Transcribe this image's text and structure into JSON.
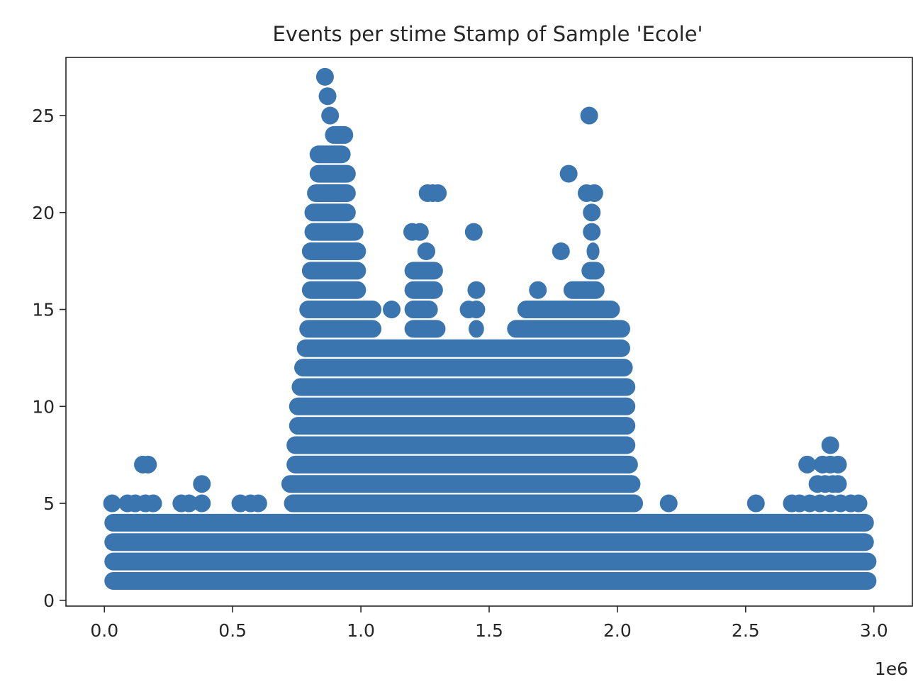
{
  "chart_data": {
    "type": "scatter",
    "title": "Events per stime Stamp of Sample 'Ecole'",
    "xlabel": "",
    "ylabel": "",
    "x_offset_label": "1e6",
    "xlim": [
      -0.15,
      3.15
    ],
    "ylim": [
      -0.3,
      28
    ],
    "x_ticks": [
      0.0,
      0.5,
      1.0,
      1.5,
      2.0,
      2.5,
      3.0
    ],
    "x_tick_labels": [
      "0.0",
      "0.5",
      "1.0",
      "1.5",
      "2.0",
      "2.5",
      "3.0"
    ],
    "y_ticks": [
      0,
      5,
      10,
      15,
      20,
      25
    ],
    "y_tick_labels": [
      "0",
      "5",
      "10",
      "15",
      "20",
      "25"
    ],
    "grid": false,
    "marker_color": "#3a75af",
    "series": [
      {
        "x_unit_scale": 1000000.0,
        "dense_rows": [
          {
            "y": 1,
            "x_start": 0.0,
            "x_end": 3.01
          },
          {
            "y": 2,
            "x_start": 0.0,
            "x_end": 3.01
          },
          {
            "y": 3,
            "x_start": 0.0,
            "x_end": 3.0
          },
          {
            "y": 4,
            "x_start": 0.0,
            "x_end": 3.0
          },
          {
            "y": 5,
            "x_start": 0.7,
            "x_end": 2.1
          },
          {
            "y": 6,
            "x_start": 0.69,
            "x_end": 2.09
          },
          {
            "y": 7,
            "x_start": 0.71,
            "x_end": 2.08
          },
          {
            "y": 8,
            "x_start": 0.71,
            "x_end": 2.07
          },
          {
            "y": 9,
            "x_start": 0.72,
            "x_end": 2.07
          },
          {
            "y": 10,
            "x_start": 0.72,
            "x_end": 2.07
          },
          {
            "y": 11,
            "x_start": 0.73,
            "x_end": 2.07
          },
          {
            "y": 12,
            "x_start": 0.74,
            "x_end": 2.06
          },
          {
            "y": 13,
            "x_start": 0.75,
            "x_end": 2.05
          },
          {
            "y": 14,
            "x_start": 0.76,
            "x_end": 1.08
          },
          {
            "y": 14,
            "x_start": 1.17,
            "x_end": 1.33
          },
          {
            "y": 14,
            "x_start": 1.42,
            "x_end": 1.48
          },
          {
            "y": 14,
            "x_start": 1.57,
            "x_end": 2.05
          },
          {
            "y": 15,
            "x_start": 0.76,
            "x_end": 1.08
          },
          {
            "y": 15,
            "x_start": 1.17,
            "x_end": 1.3
          },
          {
            "y": 15,
            "x_start": 1.61,
            "x_end": 2.01
          },
          {
            "y": 16,
            "x_start": 0.77,
            "x_end": 1.02
          },
          {
            "y": 16,
            "x_start": 1.17,
            "x_end": 1.32
          },
          {
            "y": 16,
            "x_start": 1.79,
            "x_end": 1.95
          },
          {
            "y": 17,
            "x_start": 0.77,
            "x_end": 1.02
          },
          {
            "y": 17,
            "x_start": 1.17,
            "x_end": 1.32
          },
          {
            "y": 17,
            "x_start": 1.86,
            "x_end": 1.95
          },
          {
            "y": 18,
            "x_start": 0.77,
            "x_end": 1.02
          },
          {
            "y": 18,
            "x_start": 1.22,
            "x_end": 1.29
          },
          {
            "y": 18,
            "x_start": 1.88,
            "x_end": 1.93
          },
          {
            "y": 19,
            "x_start": 0.78,
            "x_end": 1.01
          },
          {
            "y": 20,
            "x_start": 0.78,
            "x_end": 0.98
          },
          {
            "y": 21,
            "x_start": 0.79,
            "x_end": 0.98
          },
          {
            "y": 22,
            "x_start": 0.8,
            "x_end": 0.98
          },
          {
            "y": 23,
            "x_start": 0.8,
            "x_end": 0.96
          },
          {
            "y": 24,
            "x_start": 0.86,
            "x_end": 0.97
          }
        ],
        "points": [
          {
            "x": 0.03,
            "y": 5
          },
          {
            "x": 0.09,
            "y": 5
          },
          {
            "x": 0.12,
            "y": 5
          },
          {
            "x": 0.16,
            "y": 5
          },
          {
            "x": 0.19,
            "y": 5
          },
          {
            "x": 0.3,
            "y": 5
          },
          {
            "x": 0.33,
            "y": 5
          },
          {
            "x": 0.38,
            "y": 5
          },
          {
            "x": 0.53,
            "y": 5
          },
          {
            "x": 0.57,
            "y": 5
          },
          {
            "x": 0.6,
            "y": 5
          },
          {
            "x": 2.2,
            "y": 5
          },
          {
            "x": 2.54,
            "y": 5
          },
          {
            "x": 2.68,
            "y": 5
          },
          {
            "x": 2.71,
            "y": 5
          },
          {
            "x": 2.75,
            "y": 5
          },
          {
            "x": 2.79,
            "y": 5
          },
          {
            "x": 2.83,
            "y": 5
          },
          {
            "x": 2.87,
            "y": 5
          },
          {
            "x": 2.91,
            "y": 5
          },
          {
            "x": 2.94,
            "y": 5
          },
          {
            "x": 0.38,
            "y": 6
          },
          {
            "x": 2.78,
            "y": 6
          },
          {
            "x": 2.81,
            "y": 6
          },
          {
            "x": 2.84,
            "y": 6
          },
          {
            "x": 2.86,
            "y": 6
          },
          {
            "x": 0.15,
            "y": 7
          },
          {
            "x": 0.17,
            "y": 7
          },
          {
            "x": 2.74,
            "y": 7
          },
          {
            "x": 2.8,
            "y": 7
          },
          {
            "x": 2.83,
            "y": 7
          },
          {
            "x": 2.86,
            "y": 7
          },
          {
            "x": 2.83,
            "y": 8
          },
          {
            "x": 1.12,
            "y": 15
          },
          {
            "x": 1.42,
            "y": 15
          },
          {
            "x": 1.45,
            "y": 15
          },
          {
            "x": 1.45,
            "y": 16
          },
          {
            "x": 1.69,
            "y": 16
          },
          {
            "x": 1.78,
            "y": 18
          },
          {
            "x": 1.2,
            "y": 19
          },
          {
            "x": 1.23,
            "y": 19
          },
          {
            "x": 1.44,
            "y": 19
          },
          {
            "x": 1.9,
            "y": 19
          },
          {
            "x": 1.9,
            "y": 20
          },
          {
            "x": 1.26,
            "y": 21
          },
          {
            "x": 1.28,
            "y": 21
          },
          {
            "x": 1.3,
            "y": 21
          },
          {
            "x": 1.88,
            "y": 21
          },
          {
            "x": 1.91,
            "y": 21
          },
          {
            "x": 1.81,
            "y": 22
          },
          {
            "x": 0.88,
            "y": 25
          },
          {
            "x": 1.89,
            "y": 25
          },
          {
            "x": 0.87,
            "y": 26
          },
          {
            "x": 0.86,
            "y": 27
          }
        ]
      }
    ]
  }
}
